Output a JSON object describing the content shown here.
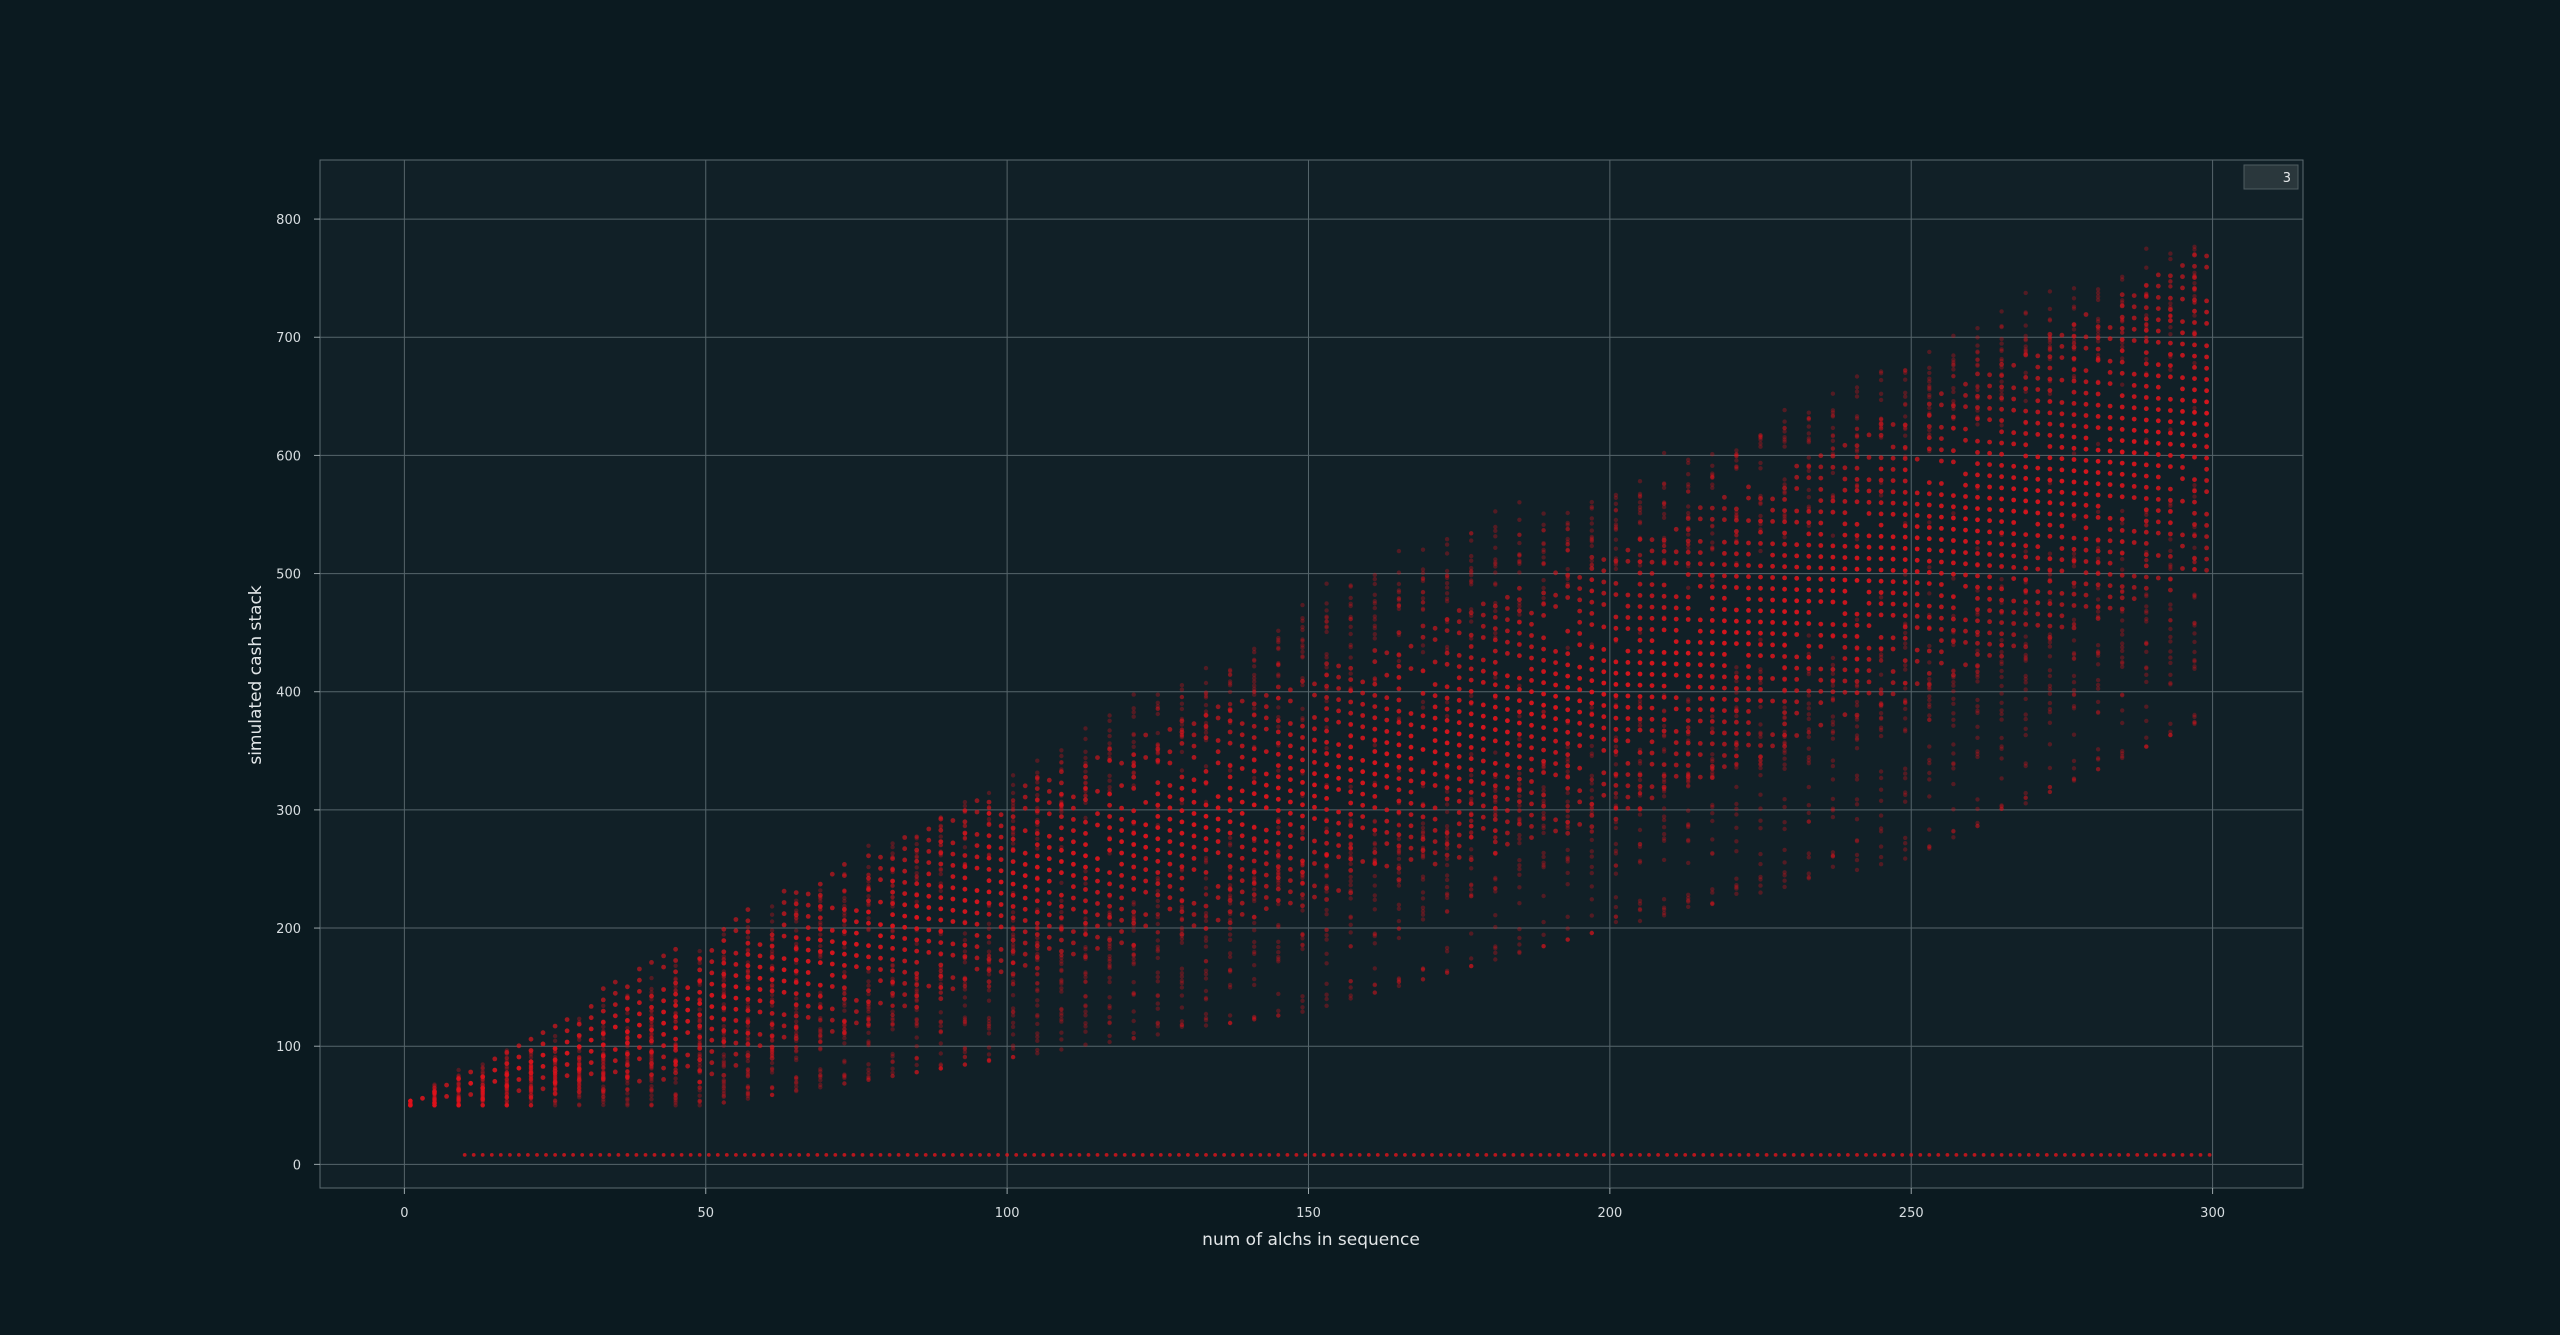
{
  "chart_data": {
    "type": "scatter",
    "title": "",
    "xlabel": "num of alchs in sequence",
    "ylabel": "simulated cash stack",
    "xlim": [
      -14,
      315
    ],
    "ylim": [
      -20,
      850
    ],
    "xticks": [
      "0",
      "50",
      "100",
      "150",
      "200",
      "250",
      "300"
    ],
    "yticks": [
      "0",
      "100",
      "200",
      "300",
      "400",
      "500",
      "600",
      "700",
      "800"
    ],
    "grid": true,
    "legend": {
      "position": "top-right",
      "entries": [
        "3"
      ]
    },
    "series_color": "#e0141c",
    "band": {
      "x_points": [
        0,
        50,
        100,
        150,
        200,
        250,
        300
      ],
      "upper_envelope": [
        50,
        235,
        380,
        520,
        600,
        740,
        825
      ],
      "lower_envelope": [
        50,
        50,
        90,
        130,
        200,
        260,
        380
      ],
      "dense_upper": [
        50,
        200,
        320,
        420,
        520,
        640,
        780
      ],
      "dense_lower": [
        50,
        70,
        160,
        220,
        290,
        400,
        500
      ]
    },
    "floor": {
      "y": 8,
      "x_start": 10,
      "x_end": 300
    }
  }
}
